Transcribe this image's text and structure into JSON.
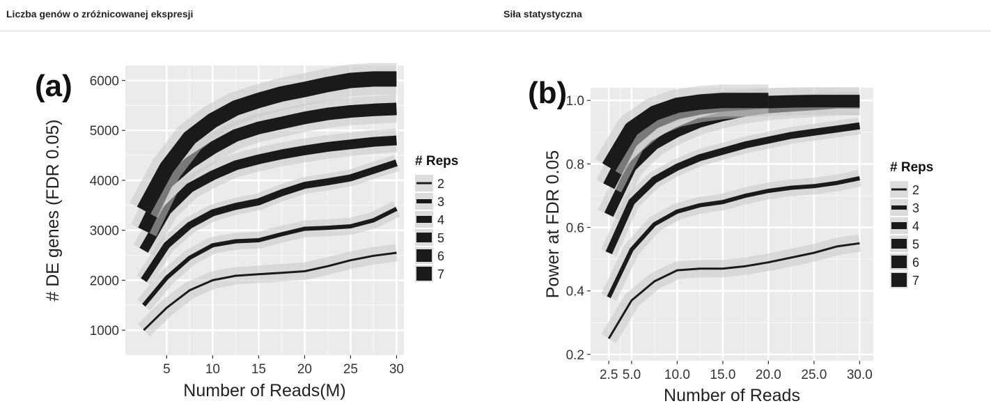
{
  "header": {
    "left_title": "Liczba genów o zróżnicowanej ekspresji",
    "right_title": "Siła statystyczna"
  },
  "colors": {
    "line": "#1a1a1a",
    "panel_bg": "#ebebeb",
    "grid": "#ffffff",
    "band": "#c8c8c8"
  },
  "chart_data": [
    {
      "type": "line",
      "panel_label": "(a)",
      "xlabel": "Number of Reads(M)",
      "ylabel": "# DE genes (FDR 0.05)",
      "xlim": [
        0.5,
        30.8
      ],
      "ylim": [
        500,
        6300
      ],
      "xticks": [
        5,
        10,
        15,
        20,
        25,
        30
      ],
      "xtick_labels": [
        "5",
        "10",
        "15",
        "20",
        "25",
        "30"
      ],
      "yticks": [
        1000,
        2000,
        3000,
        4000,
        5000,
        6000
      ],
      "ytick_labels": [
        "1000",
        "2000",
        "3000",
        "4000",
        "5000",
        "6000"
      ],
      "grid": true,
      "legend_title": "# Reps",
      "legend_position": "right",
      "series": [
        {
          "name": "2",
          "x": [
            2.5,
            5,
            7.5,
            10,
            12.5,
            15,
            17.5,
            20,
            22.5,
            25,
            27.5,
            30
          ],
          "y": [
            1000,
            1450,
            1800,
            2000,
            2090,
            2120,
            2150,
            2180,
            2280,
            2400,
            2490,
            2550
          ]
        },
        {
          "name": "3",
          "x": [
            2.5,
            5,
            7.5,
            10,
            12.5,
            15,
            17.5,
            20,
            22.5,
            25,
            27.5,
            30
          ],
          "y": [
            1500,
            2050,
            2450,
            2700,
            2780,
            2800,
            2920,
            3030,
            3050,
            3080,
            3200,
            3430
          ]
        },
        {
          "name": "4",
          "x": [
            2.5,
            5,
            7.5,
            10,
            12.5,
            15,
            17.5,
            20,
            22.5,
            25,
            27.5,
            30
          ],
          "y": [
            2000,
            2700,
            3100,
            3350,
            3480,
            3570,
            3750,
            3900,
            3970,
            4050,
            4200,
            4350
          ]
        },
        {
          "name": "5",
          "x": [
            2.5,
            5,
            7.5,
            10,
            12.5,
            15,
            17.5,
            20,
            22.5,
            25,
            27.5,
            30
          ],
          "y": [
            2600,
            3400,
            3850,
            4100,
            4300,
            4420,
            4520,
            4600,
            4670,
            4720,
            4770,
            4800
          ]
        },
        {
          "name": "6",
          "x": [
            2.5,
            5,
            7.5,
            10,
            12.5,
            15,
            17.5,
            20,
            22.5,
            25,
            27.5,
            30
          ],
          "y": [
            3000,
            3950,
            4350,
            4650,
            4900,
            5050,
            5150,
            5250,
            5330,
            5380,
            5410,
            5430
          ]
        },
        {
          "name": "7",
          "x": [
            2.5,
            5,
            7.5,
            10,
            12.5,
            15,
            17.5,
            20,
            22.5,
            25,
            27.5,
            30
          ],
          "y": [
            3400,
            4250,
            4850,
            5200,
            5450,
            5600,
            5730,
            5820,
            5920,
            6000,
            6030,
            6030
          ]
        }
      ]
    },
    {
      "type": "line",
      "panel_label": "(b)",
      "xlabel": "Number of Reads",
      "ylabel": "Power at FDR 0.05",
      "xlim": [
        0.5,
        31.5
      ],
      "ylim": [
        0.18,
        1.04
      ],
      "xticks": [
        2.5,
        5,
        10,
        15,
        20,
        25,
        30
      ],
      "xtick_labels": [
        "2.5",
        "5.0",
        "10.0",
        "15.0",
        "20.0",
        "25.0",
        "30.0"
      ],
      "yticks": [
        0.2,
        0.4,
        0.6,
        0.8,
        1.0
      ],
      "ytick_labels": [
        "0.2",
        "0.4",
        "0.6",
        "0.8",
        "1.0"
      ],
      "grid": true,
      "legend_title": "# Reps",
      "legend_position": "right",
      "series": [
        {
          "name": "2",
          "x": [
            2.5,
            5,
            7.5,
            10,
            12.5,
            15,
            17.5,
            20,
            22.5,
            25,
            27.5,
            30
          ],
          "y": [
            0.25,
            0.37,
            0.43,
            0.465,
            0.47,
            0.47,
            0.478,
            0.49,
            0.505,
            0.52,
            0.54,
            0.55
          ]
        },
        {
          "name": "3",
          "x": [
            2.5,
            5,
            7.5,
            10,
            12.5,
            15,
            17.5,
            20,
            22.5,
            25,
            27.5,
            30
          ],
          "y": [
            0.38,
            0.53,
            0.61,
            0.65,
            0.67,
            0.68,
            0.7,
            0.715,
            0.725,
            0.73,
            0.74,
            0.755
          ]
        },
        {
          "name": "4",
          "x": [
            2.5,
            5,
            7.5,
            10,
            12.5,
            15,
            17.5,
            20,
            22.5,
            25,
            27.5,
            30
          ],
          "y": [
            0.52,
            0.68,
            0.75,
            0.79,
            0.82,
            0.84,
            0.86,
            0.875,
            0.89,
            0.9,
            0.91,
            0.92
          ]
        },
        {
          "name": "5",
          "x": [
            2.5,
            5,
            7.5,
            10,
            12.5,
            15,
            17.5,
            20,
            22.5,
            25,
            27.5,
            30
          ],
          "y": [
            0.64,
            0.79,
            0.86,
            0.9,
            0.93,
            0.95,
            0.965,
            0.975,
            0.98,
            0.985,
            0.99,
            0.99
          ]
        },
        {
          "name": "6",
          "x": [
            2.5,
            5,
            7.5,
            10,
            12.5,
            15,
            17.5,
            20,
            22.5,
            25,
            27.5,
            30
          ],
          "y": [
            0.73,
            0.87,
            0.93,
            0.96,
            0.975,
            0.985,
            0.99,
            0.995,
            0.997,
            0.998,
            0.998,
            0.998
          ]
        },
        {
          "name": "7",
          "x": [
            2.5,
            5,
            7.5,
            10,
            12.5,
            15,
            17.5,
            20
          ],
          "y": [
            0.79,
            0.91,
            0.96,
            0.985,
            0.995,
            1.0,
            1.0,
            1.0
          ]
        }
      ]
    }
  ]
}
